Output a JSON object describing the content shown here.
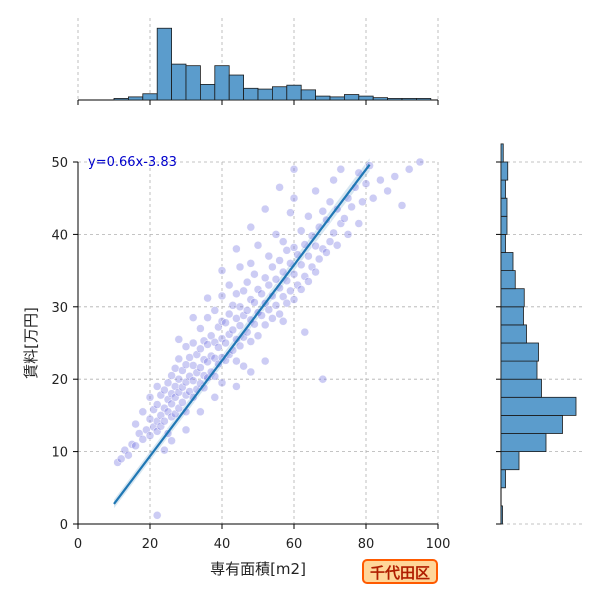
{
  "chart_data": {
    "type": "scatter",
    "subtype": "jointplot with linear regression and marginal histograms",
    "xlabel": "専有面積[m2]",
    "ylabel": "賃料[万円]",
    "xlim": [
      0,
      100
    ],
    "ylim": [
      0,
      50
    ],
    "x_ticks": [
      0,
      20,
      40,
      60,
      80,
      100
    ],
    "y_ticks": [
      0,
      10,
      20,
      30,
      40,
      50
    ],
    "grid": true,
    "regression": {
      "equation": "y=0.66x-3.83",
      "slope": 0.66,
      "intercept": -3.83,
      "x_range": [
        10,
        81
      ]
    },
    "scatter_points": [
      [
        22,
        1.2
      ],
      [
        11,
        8.5
      ],
      [
        12,
        9.0
      ],
      [
        13,
        10.2
      ],
      [
        14,
        9.5
      ],
      [
        15,
        11.0
      ],
      [
        16,
        10.8
      ],
      [
        17,
        12.5
      ],
      [
        18,
        11.7
      ],
      [
        19,
        13.0
      ],
      [
        20,
        12.2
      ],
      [
        20,
        14.5
      ],
      [
        21,
        13.4
      ],
      [
        21,
        15.8
      ],
      [
        22,
        12.8
      ],
      [
        22,
        14.2
      ],
      [
        22,
        16.5
      ],
      [
        23,
        13.5
      ],
      [
        23,
        15.0
      ],
      [
        23,
        17.8
      ],
      [
        24,
        14.2
      ],
      [
        24,
        16.0
      ],
      [
        24,
        18.5
      ],
      [
        25,
        12.5
      ],
      [
        25,
        15.5
      ],
      [
        25,
        17.2
      ],
      [
        25,
        19.5
      ],
      [
        26,
        14.8
      ],
      [
        26,
        16.6
      ],
      [
        26,
        18.0
      ],
      [
        26,
        20.5
      ],
      [
        27,
        15.2
      ],
      [
        27,
        17.5
      ],
      [
        27,
        19.0
      ],
      [
        27,
        21.5
      ],
      [
        28,
        16.0
      ],
      [
        28,
        18.2
      ],
      [
        28,
        20.0
      ],
      [
        28,
        22.8
      ],
      [
        29,
        16.8
      ],
      [
        29,
        18.9
      ],
      [
        29,
        21.2
      ],
      [
        30,
        15.5
      ],
      [
        30,
        17.8
      ],
      [
        30,
        19.6
      ],
      [
        30,
        22.0
      ],
      [
        30,
        24.5
      ],
      [
        31,
        18.3
      ],
      [
        31,
        20.4
      ],
      [
        31,
        23.0
      ],
      [
        32,
        17.5
      ],
      [
        32,
        19.8
      ],
      [
        32,
        21.9
      ],
      [
        32,
        25.0
      ],
      [
        33,
        18.6
      ],
      [
        33,
        20.9
      ],
      [
        33,
        23.4
      ],
      [
        34,
        19.4
      ],
      [
        34,
        21.6
      ],
      [
        34,
        24.2
      ],
      [
        34,
        27.0
      ],
      [
        35,
        18.8
      ],
      [
        35,
        20.5
      ],
      [
        35,
        22.7
      ],
      [
        35,
        25.3
      ],
      [
        36,
        20.2
      ],
      [
        36,
        22.4
      ],
      [
        36,
        24.8
      ],
      [
        36,
        28.5
      ],
      [
        37,
        21.0
      ],
      [
        37,
        23.2
      ],
      [
        37,
        26.0
      ],
      [
        38,
        20.4
      ],
      [
        38,
        22.9
      ],
      [
        38,
        25.1
      ],
      [
        38,
        29.5
      ],
      [
        39,
        22.1
      ],
      [
        39,
        24.4
      ],
      [
        39,
        27.2
      ],
      [
        40,
        19.5
      ],
      [
        40,
        23.0
      ],
      [
        40,
        25.6
      ],
      [
        40,
        28.0
      ],
      [
        40,
        31.5
      ],
      [
        41,
        22.6
      ],
      [
        41,
        25.0
      ],
      [
        41,
        27.8
      ],
      [
        42,
        23.4
      ],
      [
        42,
        26.2
      ],
      [
        42,
        29.0
      ],
      [
        42,
        33.0
      ],
      [
        43,
        24.0
      ],
      [
        43,
        26.8
      ],
      [
        43,
        30.2
      ],
      [
        44,
        22.5
      ],
      [
        44,
        25.5
      ],
      [
        44,
        28.4
      ],
      [
        44,
        31.8
      ],
      [
        45,
        24.6
      ],
      [
        45,
        27.4
      ],
      [
        45,
        30.0
      ],
      [
        45,
        35.5
      ],
      [
        46,
        25.8
      ],
      [
        46,
        28.8
      ],
      [
        46,
        32.2
      ],
      [
        47,
        26.5
      ],
      [
        47,
        29.5
      ],
      [
        47,
        33.4
      ],
      [
        48,
        25.2
      ],
      [
        48,
        28.2
      ],
      [
        48,
        31.0
      ],
      [
        48,
        36.0
      ],
      [
        49,
        27.6
      ],
      [
        49,
        30.6
      ],
      [
        49,
        34.5
      ],
      [
        50,
        26.0
      ],
      [
        50,
        29.2
      ],
      [
        50,
        32.4
      ],
      [
        50,
        38.5
      ],
      [
        51,
        28.8
      ],
      [
        51,
        31.8
      ],
      [
        52,
        27.5
      ],
      [
        52,
        30.5
      ],
      [
        52,
        34.0
      ],
      [
        53,
        29.6
      ],
      [
        53,
        33.0
      ],
      [
        53,
        37.0
      ],
      [
        54,
        28.4
      ],
      [
        54,
        31.5
      ],
      [
        54,
        35.5
      ],
      [
        55,
        30.2
      ],
      [
        55,
        33.8
      ],
      [
        55,
        40.0
      ],
      [
        56,
        29.0
      ],
      [
        56,
        32.6
      ],
      [
        56,
        36.4
      ],
      [
        57,
        31.4
      ],
      [
        57,
        34.8
      ],
      [
        57,
        39.0
      ],
      [
        58,
        30.5
      ],
      [
        58,
        33.6
      ],
      [
        58,
        37.8
      ],
      [
        59,
        32.2
      ],
      [
        59,
        36.0
      ],
      [
        59,
        43.0
      ],
      [
        60,
        31.0
      ],
      [
        60,
        34.5
      ],
      [
        60,
        38.2
      ],
      [
        60,
        45.0
      ],
      [
        61,
        33.0
      ],
      [
        61,
        37.2
      ],
      [
        62,
        32.4
      ],
      [
        62,
        35.8
      ],
      [
        62,
        40.5
      ],
      [
        63,
        34.2
      ],
      [
        63,
        38.6
      ],
      [
        64,
        33.5
      ],
      [
        64,
        37.0
      ],
      [
        64,
        42.5
      ],
      [
        65,
        35.5
      ],
      [
        65,
        39.8
      ],
      [
        66,
        34.8
      ],
      [
        66,
        38.4
      ],
      [
        66,
        46.0
      ],
      [
        67,
        36.6
      ],
      [
        67,
        41.0
      ],
      [
        68,
        20.0
      ],
      [
        68,
        38.0
      ],
      [
        68,
        43.2
      ],
      [
        69,
        37.5
      ],
      [
        69,
        42.0
      ],
      [
        70,
        39.0
      ],
      [
        70,
        44.5
      ],
      [
        71,
        40.2
      ],
      [
        71,
        47.5
      ],
      [
        72,
        38.5
      ],
      [
        72,
        43.5
      ],
      [
        73,
        41.5
      ],
      [
        73,
        49.0
      ],
      [
        74,
        42.2
      ],
      [
        75,
        40.0
      ],
      [
        75,
        45.0
      ],
      [
        76,
        43.8
      ],
      [
        77,
        46.5
      ],
      [
        78,
        41.5
      ],
      [
        78,
        48.5
      ],
      [
        79,
        44.5
      ],
      [
        80,
        47.0
      ],
      [
        81,
        49.5
      ],
      [
        82,
        45.0
      ],
      [
        84,
        47.5
      ],
      [
        86,
        46.0
      ],
      [
        88,
        48.0
      ],
      [
        90,
        44.0
      ],
      [
        92,
        49.0
      ],
      [
        95,
        50.0
      ],
      [
        63,
        26.5
      ],
      [
        57,
        28.0
      ],
      [
        52,
        22.5
      ],
      [
        48,
        21.0
      ],
      [
        44,
        19.0
      ],
      [
        38,
        17.5
      ],
      [
        34,
        15.5
      ],
      [
        30,
        13.0
      ],
      [
        26,
        11.5
      ],
      [
        24,
        10.2
      ],
      [
        28,
        25.5
      ],
      [
        32,
        28.5
      ],
      [
        36,
        31.2
      ],
      [
        40,
        35.0
      ],
      [
        44,
        38.0
      ],
      [
        48,
        41.0
      ],
      [
        52,
        43.5
      ],
      [
        56,
        46.5
      ],
      [
        60,
        49.0
      ],
      [
        22,
        19.0
      ],
      [
        20,
        17.5
      ],
      [
        18,
        15.5
      ],
      [
        16,
        13.8
      ],
      [
        46,
        21.8
      ]
    ],
    "top_histogram": {
      "axis": "x",
      "bins": [
        [
          10,
          14,
          0.02
        ],
        [
          14,
          18,
          0.04
        ],
        [
          18,
          22,
          0.08
        ],
        [
          22,
          26,
          0.92
        ],
        [
          26,
          30,
          0.46
        ],
        [
          30,
          34,
          0.44
        ],
        [
          34,
          38,
          0.2
        ],
        [
          38,
          42,
          0.44
        ],
        [
          42,
          46,
          0.32
        ],
        [
          46,
          50,
          0.15
        ],
        [
          50,
          54,
          0.14
        ],
        [
          54,
          58,
          0.17
        ],
        [
          58,
          62,
          0.19
        ],
        [
          62,
          66,
          0.13
        ],
        [
          66,
          70,
          0.05
        ],
        [
          70,
          74,
          0.04
        ],
        [
          74,
          78,
          0.07
        ],
        [
          78,
          82,
          0.05
        ],
        [
          82,
          86,
          0.03
        ],
        [
          86,
          90,
          0.02
        ],
        [
          90,
          94,
          0.02
        ],
        [
          94,
          98,
          0.02
        ]
      ]
    },
    "right_histogram": {
      "axis": "y",
      "bins": [
        [
          0,
          2.5,
          0.02
        ],
        [
          2.5,
          5,
          0.0
        ],
        [
          5,
          7.5,
          0.06
        ],
        [
          7.5,
          10,
          0.24
        ],
        [
          10,
          12.5,
          0.6
        ],
        [
          12.5,
          15,
          0.82
        ],
        [
          15,
          17.5,
          1.0
        ],
        [
          17.5,
          20,
          0.54
        ],
        [
          20,
          22.5,
          0.48
        ],
        [
          22.5,
          25,
          0.5
        ],
        [
          25,
          27.5,
          0.34
        ],
        [
          27.5,
          30,
          0.3
        ],
        [
          30,
          32.5,
          0.31
        ],
        [
          32.5,
          35,
          0.19
        ],
        [
          35,
          37.5,
          0.16
        ],
        [
          37.5,
          40,
          0.06
        ],
        [
          40,
          42.5,
          0.08
        ],
        [
          42.5,
          45,
          0.08
        ],
        [
          45,
          47.5,
          0.06
        ],
        [
          47.5,
          50,
          0.09
        ],
        [
          50,
          52.5,
          0.03
        ]
      ]
    },
    "colors": {
      "points": "#6d6ddf",
      "regression_line": "#1f77b4",
      "histogram_fill": "#5b9ccc",
      "equation_text": "#0000cc",
      "badge_fill": "#ffd699",
      "badge_border": "#ff5a00",
      "badge_text": "#b01e00"
    }
  },
  "badge": {
    "label": "千代田区"
  }
}
